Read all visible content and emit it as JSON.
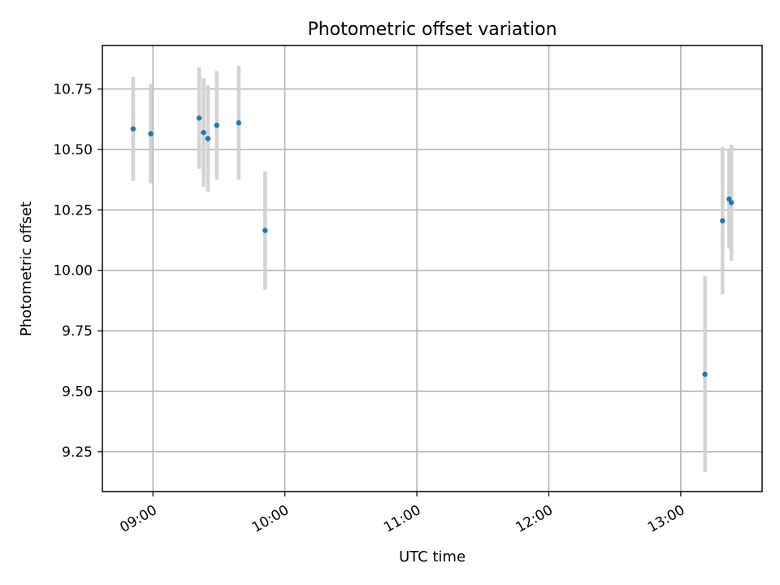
{
  "chart_data": {
    "type": "scatter",
    "title": "Photometric offset variation",
    "xlabel": "UTC time",
    "ylabel": "Photometric offset",
    "x_axis_kind": "time",
    "xlim": [
      "08:37",
      "13:37"
    ],
    "ylim": [
      9.085,
      10.93
    ],
    "x_ticks": [
      "09:00",
      "10:00",
      "11:00",
      "12:00",
      "13:00"
    ],
    "y_ticks": [
      9.25,
      9.5,
      9.75,
      10.0,
      10.25,
      10.5,
      10.75
    ],
    "y_tick_labels": [
      "9.25",
      "9.50",
      "9.75",
      "10.00",
      "10.25",
      "10.50",
      "10.75"
    ],
    "grid": true,
    "colors": {
      "points": "#1f77b4",
      "error_bars": "#d3d3d3",
      "grid": "#b0b0b0"
    },
    "points": [
      {
        "x": "08:51",
        "y": 10.585,
        "err": 0.215
      },
      {
        "x": "08:59",
        "y": 10.565,
        "err": 0.205
      },
      {
        "x": "09:21",
        "y": 10.63,
        "err": 0.21
      },
      {
        "x": "09:23",
        "y": 10.57,
        "err": 0.225
      },
      {
        "x": "09:25",
        "y": 10.545,
        "err": 0.22
      },
      {
        "x": "09:29",
        "y": 10.6,
        "err": 0.225
      },
      {
        "x": "09:39",
        "y": 10.61,
        "err": 0.235
      },
      {
        "x": "09:51",
        "y": 10.165,
        "err": 0.245
      },
      {
        "x": "13:11",
        "y": 9.57,
        "err": 0.405
      },
      {
        "x": "13:19",
        "y": 10.205,
        "err": 0.305
      },
      {
        "x": "13:22",
        "y": 10.295,
        "err": 0.205
      },
      {
        "x": "13:23",
        "y": 10.28,
        "err": 0.24
      }
    ]
  }
}
